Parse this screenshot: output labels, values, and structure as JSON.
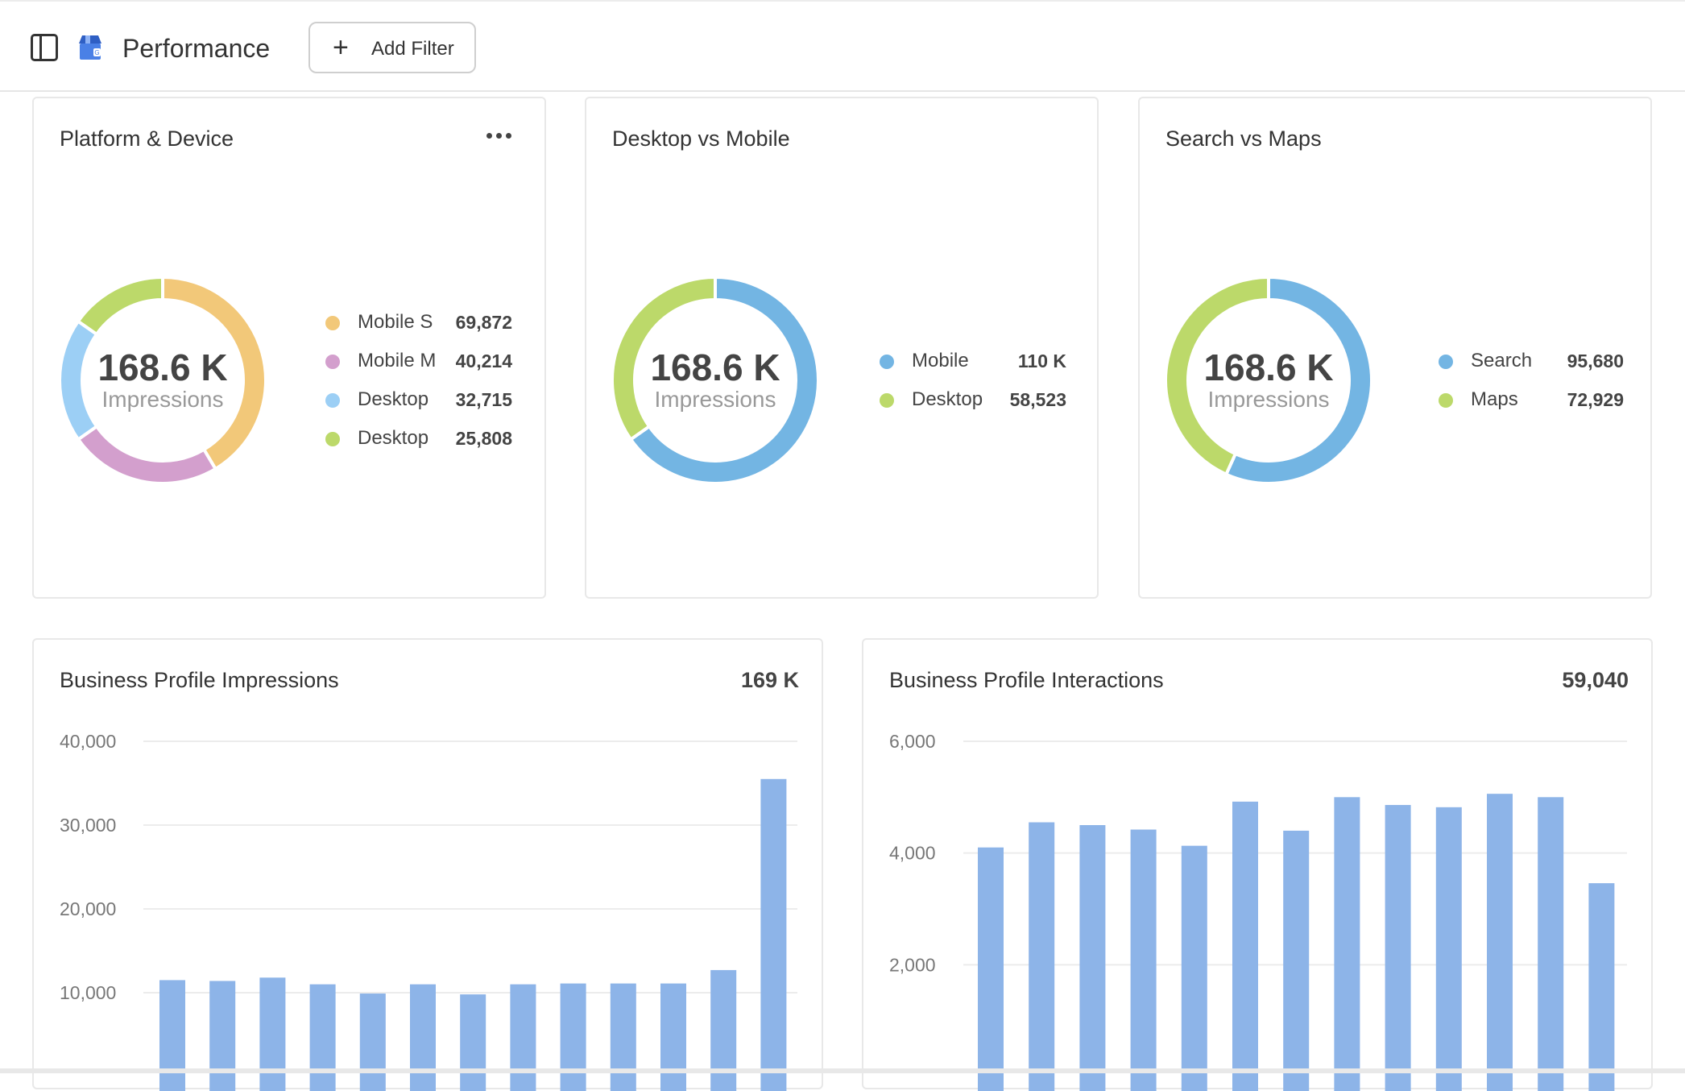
{
  "header": {
    "title": "Performance",
    "add_filter_label": "Add Filter"
  },
  "colors": {
    "mobile_search": "#f2c879",
    "mobile_maps": "#d39fcd",
    "desktop_light": "#9ccff5",
    "green": "#bcd96a",
    "blue": "#73b5e3",
    "bar": "#8db4e8"
  },
  "platform_device": {
    "title": "Platform & Device",
    "center_value": "168.6 K",
    "center_caption": "Impressions",
    "legend": [
      {
        "label": "Mobile S",
        "value": "69,872",
        "color": "#f2c879",
        "num": 69872
      },
      {
        "label": "Mobile M",
        "value": "40,214",
        "color": "#d39fcd",
        "num": 40214
      },
      {
        "label": "Desktop",
        "value": "32,715",
        "color": "#9ccff5",
        "num": 32715
      },
      {
        "label": "Desktop",
        "value": "25,808",
        "color": "#bcd96a",
        "num": 25808
      }
    ]
  },
  "desktop_mobile": {
    "title": "Desktop vs Mobile",
    "center_value": "168.6 K",
    "center_caption": "Impressions",
    "legend": [
      {
        "label": "Mobile",
        "value": "110 K",
        "color": "#73b5e3",
        "num": 110086
      },
      {
        "label": "Desktop",
        "value": "58,523",
        "color": "#bcd96a",
        "num": 58523
      }
    ]
  },
  "search_maps": {
    "title": "Search vs Maps",
    "center_value": "168.6 K",
    "center_caption": "Impressions",
    "legend": [
      {
        "label": "Search",
        "value": "95,680",
        "color": "#73b5e3",
        "num": 95680
      },
      {
        "label": "Maps",
        "value": "72,929",
        "color": "#bcd96a",
        "num": 72929
      }
    ]
  },
  "impressions_chart": {
    "title": "Business Profile Impressions",
    "total": "169 K",
    "ticks": [
      "40,000",
      "30,000",
      "20,000",
      "10,000"
    ]
  },
  "interactions_chart": {
    "title": "Business Profile Interactions",
    "total": "59,040",
    "ticks": [
      "6,000",
      "4,000",
      "2,000"
    ]
  },
  "chart_data": [
    {
      "type": "pie",
      "title": "Platform & Device",
      "labels": [
        "Mobile S",
        "Mobile M",
        "Desktop",
        "Desktop"
      ],
      "values": [
        69872,
        40214,
        32715,
        25808
      ]
    },
    {
      "type": "pie",
      "title": "Desktop vs Mobile",
      "labels": [
        "Mobile",
        "Desktop"
      ],
      "values": [
        110086,
        58523
      ]
    },
    {
      "type": "pie",
      "title": "Search vs Maps",
      "labels": [
        "Search",
        "Maps"
      ],
      "values": [
        95680,
        72929
      ]
    },
    {
      "type": "bar",
      "title": "Business Profile Impressions",
      "values": [
        11500,
        11400,
        11800,
        11000,
        9900,
        11000,
        9800,
        11000,
        11100,
        11100,
        11100,
        12700,
        35500
      ],
      "ylim": [
        0,
        40000
      ]
    },
    {
      "type": "bar",
      "title": "Business Profile Interactions",
      "values": [
        4100,
        4550,
        4500,
        4420,
        4130,
        4920,
        4400,
        5000,
        4860,
        4820,
        5060,
        5000,
        3460
      ],
      "ylim": [
        0,
        6000
      ]
    }
  ]
}
